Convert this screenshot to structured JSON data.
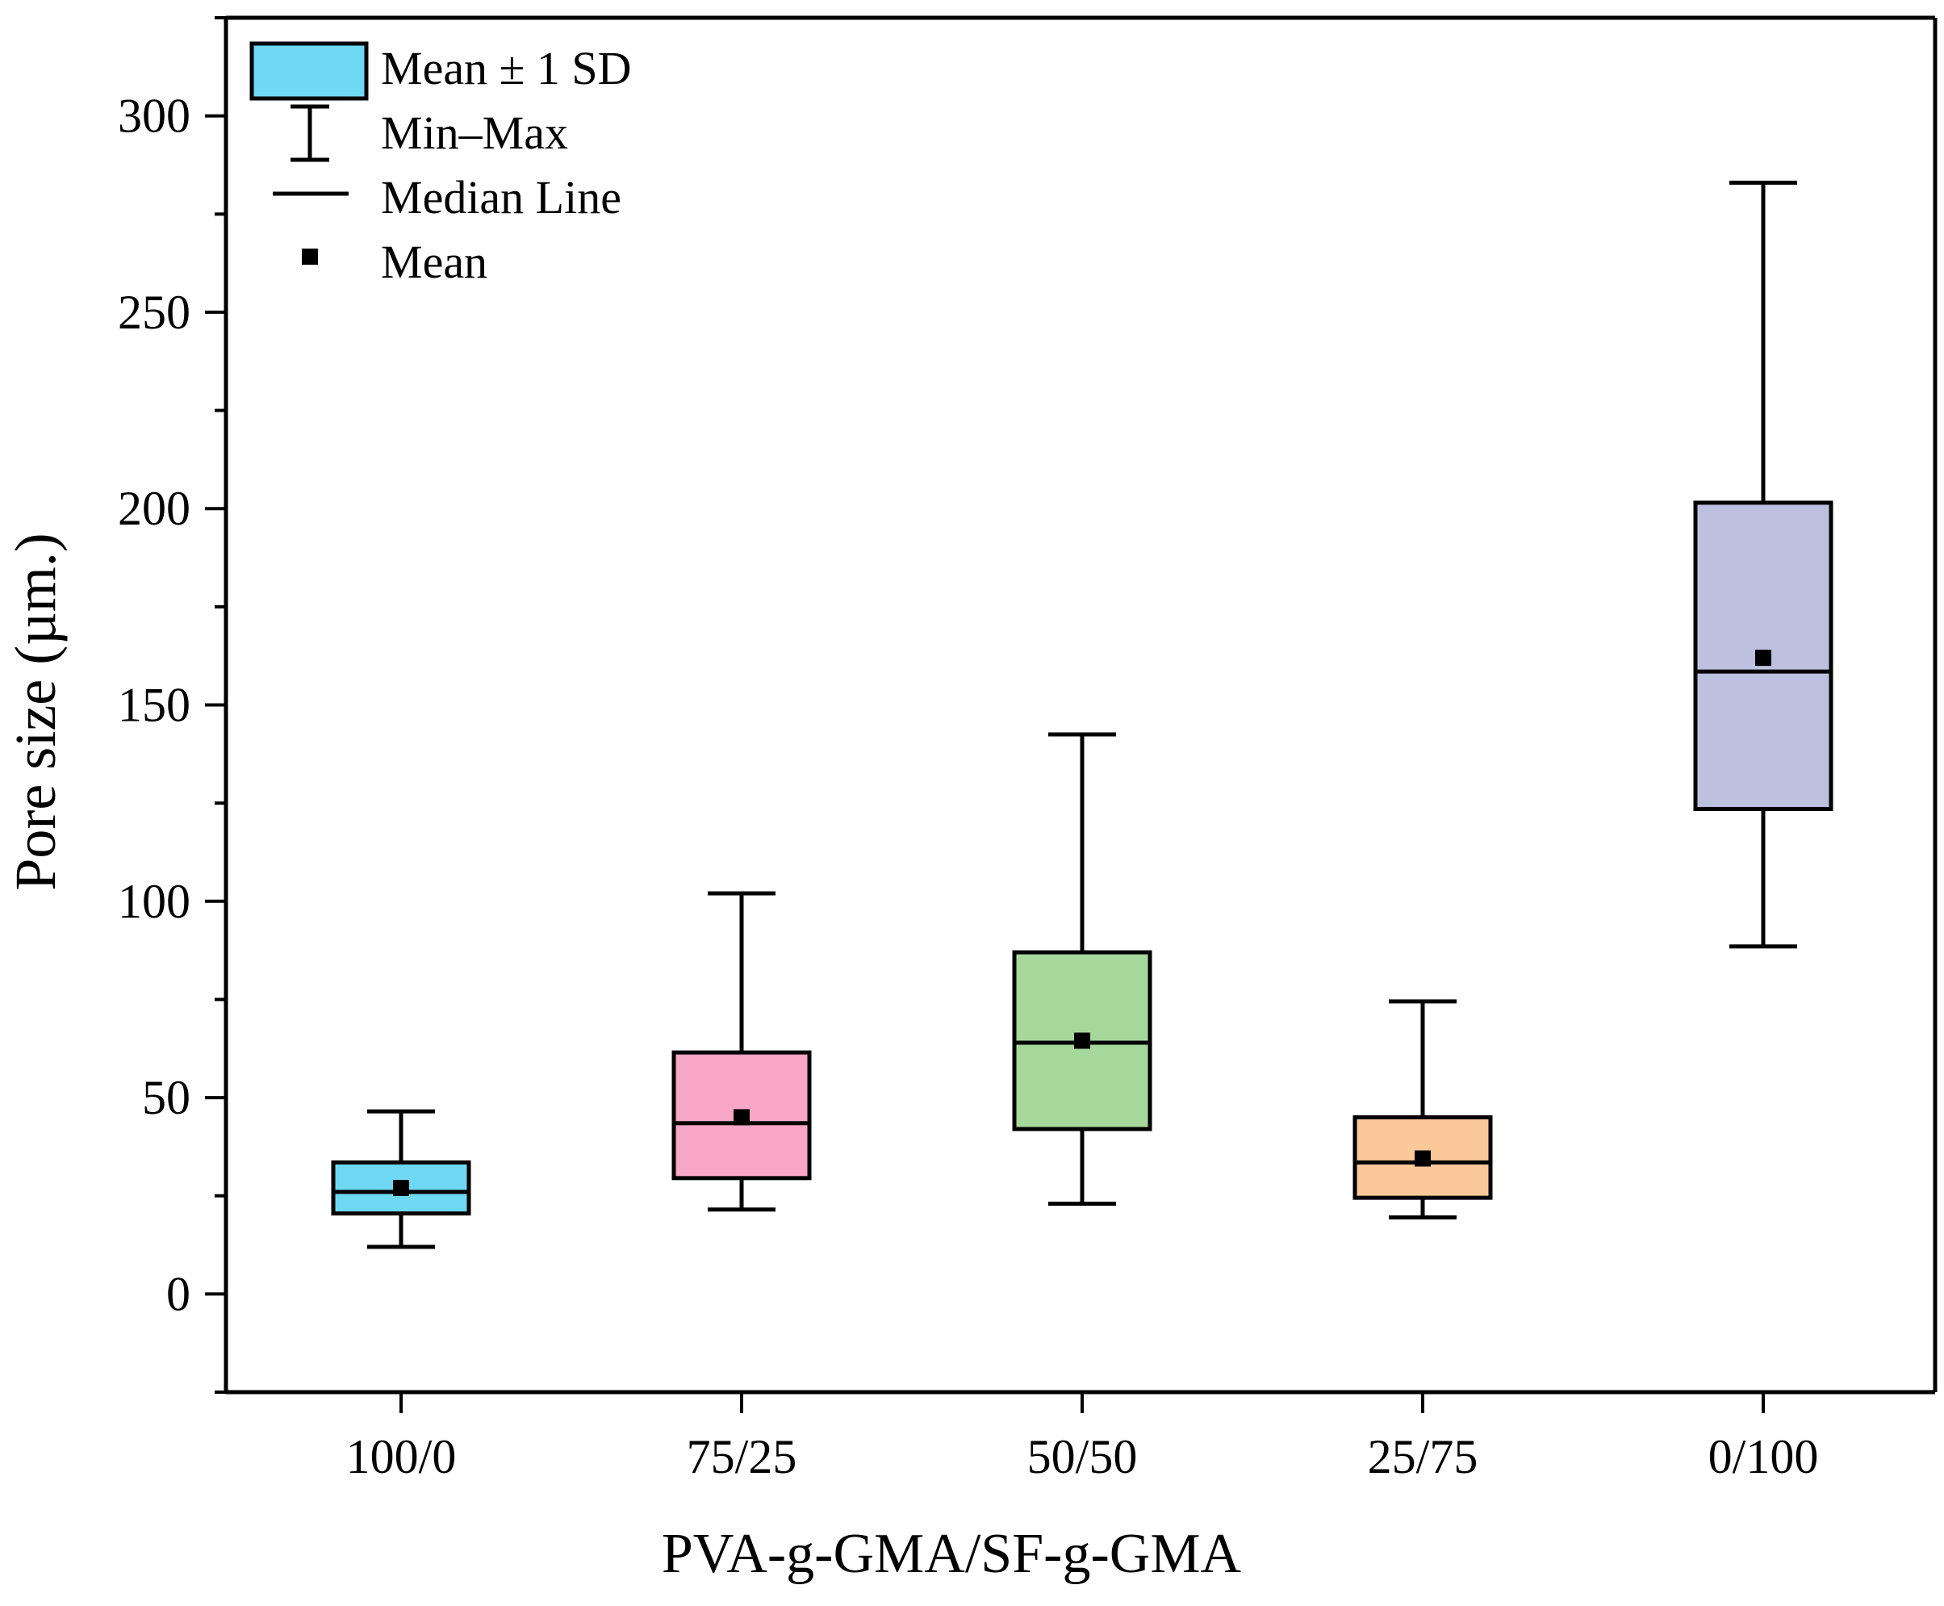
{
  "chart_data": {
    "type": "box",
    "xlabel": "PVA-g-GMA/SF-g-GMA",
    "ylabel": "Pore size (µm.)",
    "ylim": [
      -25,
      325
    ],
    "yticks": [
      0,
      50,
      100,
      150,
      200,
      250,
      300
    ],
    "yminor_step": 25,
    "grid": false,
    "legend_position": "top-left",
    "categories": [
      "100/0",
      "75/25",
      "50/50",
      "25/75",
      "0/100"
    ],
    "boxes": [
      {
        "category": "100/0",
        "min": 12,
        "q_low": 20.5,
        "median": 26,
        "mean": 27,
        "q_high": 33.5,
        "max": 46.5,
        "color": "#6fd8f2"
      },
      {
        "category": "75/25",
        "min": 21.5,
        "q_low": 29.5,
        "median": 43.5,
        "mean": 45,
        "q_high": 61.5,
        "max": 102,
        "color": "#f7a6c6"
      },
      {
        "category": "50/50",
        "min": 23,
        "q_low": 42,
        "median": 64,
        "mean": 64.5,
        "q_high": 87,
        "max": 142.5,
        "color": "#a6d79b"
      },
      {
        "category": "25/75",
        "min": 19.5,
        "q_low": 24.5,
        "median": 33.5,
        "mean": 34.5,
        "q_high": 45,
        "max": 74.5,
        "color": "#fbc89a"
      },
      {
        "category": "0/100",
        "min": 88.5,
        "q_low": 123.5,
        "median": 158.5,
        "mean": 162,
        "q_high": 201.5,
        "max": 283,
        "color": "#bec0e0"
      }
    ],
    "legend": [
      {
        "symbol": "box",
        "label": "Mean ± 1 SD",
        "color": "#6fd8f2"
      },
      {
        "symbol": "whisker",
        "label": "Min–Max"
      },
      {
        "symbol": "line",
        "label": "Median Line"
      },
      {
        "symbol": "square",
        "label": "Mean"
      }
    ]
  }
}
